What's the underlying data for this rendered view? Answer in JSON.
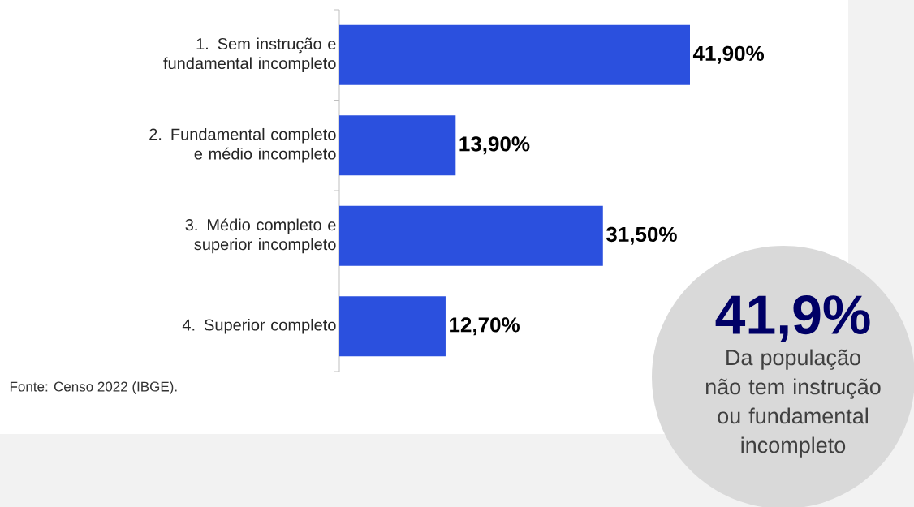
{
  "chart_data": {
    "type": "bar",
    "orientation": "horizontal",
    "categories": [
      "1. Sem instrução e fundamental incompleto",
      "2. Fundamental completo e médio incompleto",
      "3. Médio completo e superior incompleto",
      "4. Superior completo"
    ],
    "values": [
      41.9,
      13.9,
      31.5,
      12.7
    ],
    "value_labels": [
      "41,90%",
      "13,90%",
      "31,50%",
      "12,70%"
    ],
    "color": "#2b50de",
    "annotations": [
      "Fonte:  Censo 2022 (IBGE).",
      "41,9%",
      "Da população não tem instrução ou fundamental incompleto"
    ]
  }
}
